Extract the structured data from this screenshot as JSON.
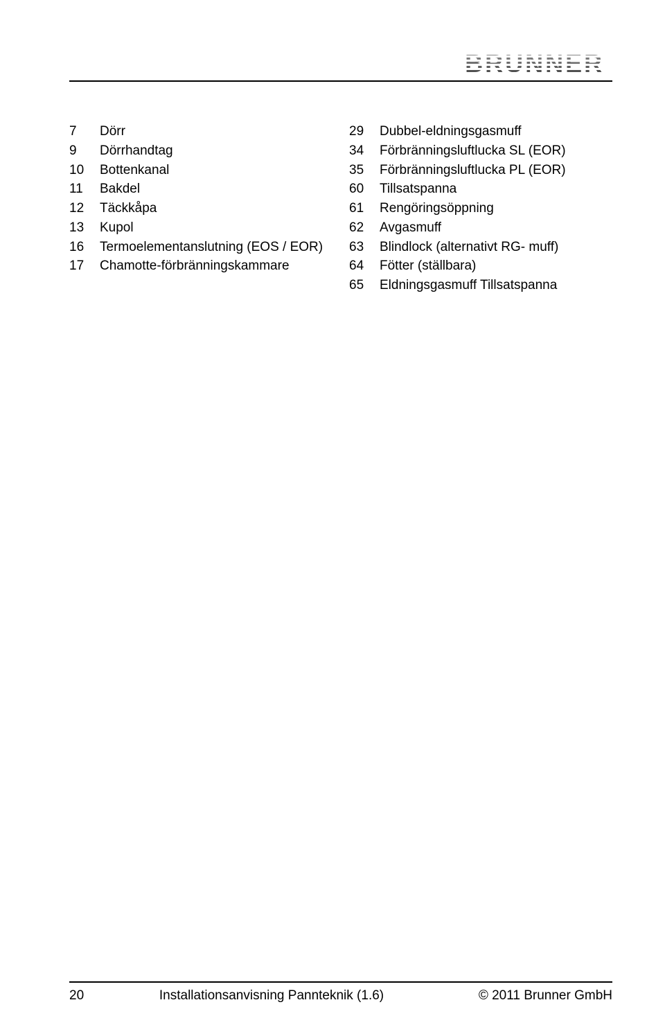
{
  "header": {
    "logo_text": "BRUNNER",
    "logo_reg": "®"
  },
  "parts_table": {
    "left": [
      {
        "num": "7",
        "desc": "Dörr"
      },
      {
        "num": "9",
        "desc": "Dörrhandtag"
      },
      {
        "num": "10",
        "desc": "Bottenkanal"
      },
      {
        "num": "11",
        "desc": "Bakdel"
      },
      {
        "num": "12",
        "desc": "Täckkåpa"
      },
      {
        "num": "13",
        "desc": "Kupol"
      },
      {
        "num": "16",
        "desc": "Termoelementanslutning (EOS / EOR)"
      },
      {
        "num": "17",
        "desc": "Chamotte-förbränningskammare"
      }
    ],
    "right": [
      {
        "num": "29",
        "desc": "Dubbel-eldningsgasmuff"
      },
      {
        "num": "34",
        "desc": "Förbränningsluftlucka SL (EOR)"
      },
      {
        "num": "35",
        "desc": "Förbränningsluftlucka PL (EOR)"
      },
      {
        "num": "60",
        "desc": "Tillsatspanna"
      },
      {
        "num": "61",
        "desc": "Rengöringsöppning"
      },
      {
        "num": "62",
        "desc": "Avgasmuff"
      },
      {
        "num": "63",
        "desc": "Blindlock (alternativt RG- muff)"
      },
      {
        "num": "64",
        "desc": "Fötter (ställbara)"
      },
      {
        "num": "65",
        "desc": "Eldningsgasmuff Tillsatspanna"
      }
    ]
  },
  "footer": {
    "page_number": "20",
    "center_text": "Installationsanvisning Pannteknik (1.6)",
    "right_text": "© 2011 Brunner GmbH"
  },
  "colors": {
    "text": "#000000",
    "rule": "#000000",
    "background": "#ffffff"
  }
}
